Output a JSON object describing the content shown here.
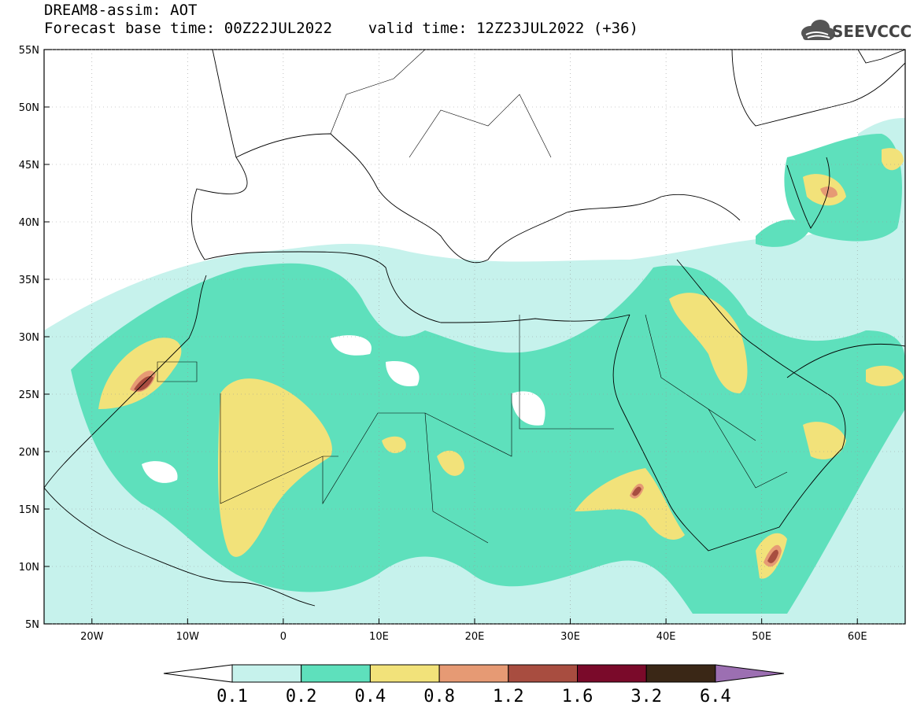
{
  "header": {
    "title": "DREAM8-assim: AOT",
    "subtitle": "Forecast base time: 00Z22JUL2022    valid time: 12Z23JUL2022 (+36)"
  },
  "logo": {
    "text": "SEEVCCC",
    "icon": "cloud-logo-icon"
  },
  "map": {
    "lon_range": [
      -25,
      65
    ],
    "lat_range": [
      5,
      55
    ],
    "x_ticks": [
      "20W",
      "10W",
      "0",
      "10E",
      "20E",
      "30E",
      "40E",
      "50E",
      "60E"
    ],
    "y_ticks": [
      "55N",
      "50N",
      "45N",
      "40N",
      "35N",
      "30N",
      "25N",
      "20N",
      "15N",
      "10N",
      "5N"
    ],
    "gridlines": "dotted"
  },
  "colorbar": {
    "labels": [
      "0.1",
      "0.2",
      "0.4",
      "0.8",
      "1.2",
      "1.6",
      "3.2",
      "6.4"
    ],
    "colors": [
      "#c6f2ec",
      "#5ee0bc",
      "#f2e27a",
      "#e69a74",
      "#a84d40",
      "#7a0a2a",
      "#3a2716",
      "#9c6fb2"
    ],
    "extend": "both"
  }
}
